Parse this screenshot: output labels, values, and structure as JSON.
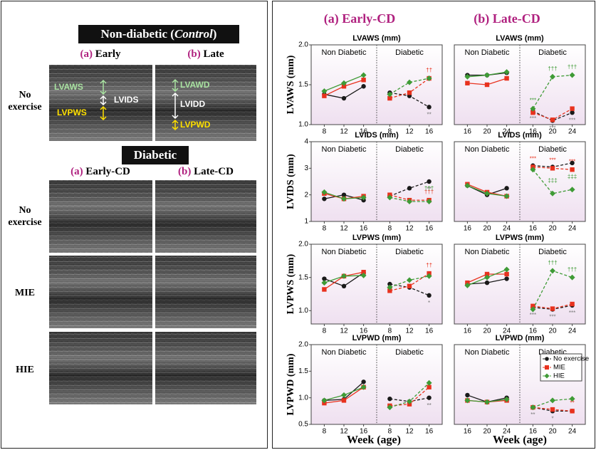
{
  "left_panel": {
    "control_title": {
      "before": "Non-diabetic (",
      "italic": "Control",
      "after": ")"
    },
    "control_columns": [
      {
        "letter": "(a)",
        "label": "Early"
      },
      {
        "letter": "(b)",
        "label": "Late"
      }
    ],
    "control_row": "No exercise",
    "early_labels": [
      "LVAWS",
      "LVIDS",
      "LVPWS"
    ],
    "late_labels": [
      "LVAWD",
      "LVIDD",
      "LVPWD"
    ],
    "diabetic_title": "Diabetic",
    "diabetic_columns": [
      {
        "letter": "(a)",
        "label": "Early-CD"
      },
      {
        "letter": "(b)",
        "label": "Late-CD"
      }
    ],
    "diabetic_rows": [
      "No exercise",
      "MIE",
      "HIE"
    ]
  },
  "figure": {
    "columns": [
      {
        "letter": "(a)",
        "label": "Early-CD"
      },
      {
        "letter": "(b)",
        "label": "Late-CD"
      }
    ],
    "x_label": "Week (age)"
  },
  "chart_data": [
    {
      "type": "line",
      "title": "LVAWS (mm)",
      "y_label": "LVAWS (mm)",
      "ylim": [
        1.0,
        2.0
      ],
      "yticks": [
        {
          "value": 1,
          "label": "1.0"
        },
        {
          "value": 1.5,
          "label": "1.5"
        },
        {
          "value": 2,
          "label": "2.0"
        }
      ],
      "panels": [
        {
          "label": "Non Diabetic",
          "categories": [
            "8",
            "12",
            "16"
          ],
          "line_style": "solid",
          "series": [
            {
              "color": "#1a1a1a",
              "marker": "circle",
              "values": [
                1.38,
                1.33,
                1.48
              ]
            },
            {
              "color": "#e8321e",
              "marker": "square",
              "values": [
                1.36,
                1.48,
                1.56
              ]
            },
            {
              "color": "#3f9b36",
              "marker": "diamond",
              "values": [
                1.42,
                1.52,
                1.62
              ]
            }
          ]
        },
        {
          "label": "Diabetic",
          "categories": [
            "8",
            "12",
            "16"
          ],
          "line_style": "dashed",
          "series": [
            {
              "color": "#1a1a1a",
              "marker": "circle",
              "values": [
                1.4,
                1.36,
                1.22
              ]
            },
            {
              "color": "#e8321e",
              "marker": "square",
              "values": [
                1.33,
                1.4,
                1.58
              ]
            },
            {
              "color": "#3f9b36",
              "marker": "diamond",
              "values": [
                1.38,
                1.53,
                1.58
              ]
            }
          ]
        }
      ],
      "annotations": [
        {
          "text": "**",
          "panel": 1,
          "index": 2,
          "series": 0
        },
        {
          "text": "††",
          "panel": 1,
          "index": 2,
          "series": 1
        }
      ]
    },
    {
      "type": "line",
      "title": "LVAWS (mm)",
      "ylim": [
        1.0,
        2.0
      ],
      "panels": [
        {
          "label": "Non Diabetic",
          "categories": [
            "16",
            "20",
            "24"
          ],
          "line_style": "solid",
          "series": [
            {
              "color": "#1a1a1a",
              "marker": "circle",
              "values": [
                1.62,
                1.62,
                1.65
              ]
            },
            {
              "color": "#e8321e",
              "marker": "square",
              "values": [
                1.52,
                1.5,
                1.58
              ]
            },
            {
              "color": "#3f9b36",
              "marker": "diamond",
              "values": [
                1.6,
                1.62,
                1.66
              ]
            }
          ]
        },
        {
          "label": "Diabetic",
          "categories": [
            "16",
            "20",
            "24"
          ],
          "line_style": "dashed",
          "series": [
            {
              "color": "#1a1a1a",
              "marker": "circle",
              "values": [
                1.17,
                1.05,
                1.15
              ]
            },
            {
              "color": "#e8321e",
              "marker": "square",
              "values": [
                1.15,
                1.06,
                1.2
              ]
            },
            {
              "color": "#3f9b36",
              "marker": "diamond",
              "values": [
                1.2,
                1.6,
                1.62
              ]
            }
          ]
        }
      ],
      "annotations": [
        {
          "text": "***",
          "panel": 1,
          "index": 0,
          "series": 2
        },
        {
          "text": "***",
          "panel": 1,
          "index": 0,
          "series": 0
        },
        {
          "text": "***",
          "panel": 1,
          "index": 1,
          "series": 0
        },
        {
          "text": "†††",
          "panel": 1,
          "index": 1,
          "series": 2
        },
        {
          "text": "†††",
          "panel": 1,
          "index": 2,
          "series": 2
        },
        {
          "text": "***",
          "panel": 1,
          "index": 2,
          "series": 0
        }
      ]
    },
    {
      "type": "line",
      "title": "LVIDS (mm)",
      "y_label": "LVIDS (mm)",
      "ylim": [
        1,
        4
      ],
      "yticks": [
        1,
        2,
        3,
        4
      ],
      "panels": [
        {
          "label": "Non Diabetic",
          "categories": [
            "8",
            "12",
            "16"
          ],
          "line_style": "solid",
          "series": [
            {
              "color": "#1a1a1a",
              "marker": "circle",
              "values": [
                1.85,
                2.0,
                1.8
              ]
            },
            {
              "color": "#e8321e",
              "marker": "square",
              "values": [
                2.05,
                1.85,
                1.95
              ]
            },
            {
              "color": "#3f9b36",
              "marker": "diamond",
              "values": [
                2.1,
                1.85,
                1.9
              ]
            }
          ]
        },
        {
          "label": "Diabetic",
          "categories": [
            "8",
            "12",
            "16"
          ],
          "line_style": "dashed",
          "series": [
            {
              "color": "#1a1a1a",
              "marker": "circle",
              "values": [
                1.95,
                2.25,
                2.5
              ]
            },
            {
              "color": "#e8321e",
              "marker": "square",
              "values": [
                2.0,
                1.8,
                1.8
              ]
            },
            {
              "color": "#3f9b36",
              "marker": "diamond",
              "values": [
                1.9,
                1.75,
                1.75
              ]
            }
          ]
        }
      ],
      "annotations": [
        {
          "text": "**",
          "panel": 1,
          "index": 2,
          "series": 0
        },
        {
          "text": "†††",
          "panel": 1,
          "index": 2,
          "series": 1
        },
        {
          "text": "†††",
          "panel": 1,
          "index": 2,
          "series": 2
        }
      ]
    },
    {
      "type": "line",
      "title": "LVIDS (mm)",
      "ylim": [
        1,
        4
      ],
      "panels": [
        {
          "label": "Non Diabetic",
          "categories": [
            "16",
            "20",
            "24"
          ],
          "line_style": "solid",
          "series": [
            {
              "color": "#1a1a1a",
              "marker": "circle",
              "values": [
                2.35,
                2.0,
                2.25
              ]
            },
            {
              "color": "#e8321e",
              "marker": "square",
              "values": [
                2.4,
                2.1,
                1.95
              ]
            },
            {
              "color": "#3f9b36",
              "marker": "diamond",
              "values": [
                2.35,
                2.05,
                1.95
              ]
            }
          ]
        },
        {
          "label": "Diabetic",
          "categories": [
            "16",
            "20",
            "24"
          ],
          "line_style": "dashed",
          "series": [
            {
              "color": "#1a1a1a",
              "marker": "circle",
              "values": [
                3.1,
                3.05,
                3.2
              ]
            },
            {
              "color": "#e8321e",
              "marker": "square",
              "values": [
                3.05,
                3.0,
                2.95
              ]
            },
            {
              "color": "#3f9b36",
              "marker": "diamond",
              "values": [
                2.95,
                2.05,
                2.2
              ]
            }
          ]
        }
      ],
      "annotations": [
        {
          "text": "***",
          "panel": 1,
          "index": 0,
          "series": 1
        },
        {
          "text": "***",
          "panel": 1,
          "index": 1,
          "series": 1
        },
        {
          "text": "***",
          "panel": 1,
          "index": 2,
          "series": 1
        },
        {
          "text": "‡‡‡",
          "panel": 1,
          "index": 1,
          "series": 2
        },
        {
          "text": "‡‡‡",
          "panel": 1,
          "index": 2,
          "series": 2
        }
      ]
    },
    {
      "type": "line",
      "title": "LVPWS (mm)",
      "y_label": "LVPWS (mm)",
      "ylim": [
        0.8,
        2.0
      ],
      "yticks": [
        {
          "value": 1,
          "label": "1.0"
        },
        {
          "value": 1.5,
          "label": "1.5"
        },
        {
          "value": 2,
          "label": "2.0"
        }
      ],
      "panels": [
        {
          "label": "Non Diabetic",
          "categories": [
            "8",
            "12",
            "16"
          ],
          "line_style": "solid",
          "series": [
            {
              "color": "#1a1a1a",
              "marker": "circle",
              "values": [
                1.48,
                1.37,
                1.57
              ]
            },
            {
              "color": "#e8321e",
              "marker": "square",
              "values": [
                1.32,
                1.52,
                1.58
              ]
            },
            {
              "color": "#3f9b36",
              "marker": "diamond",
              "values": [
                1.42,
                1.52,
                1.53
              ]
            }
          ]
        },
        {
          "label": "Diabetic",
          "categories": [
            "8",
            "12",
            "16"
          ],
          "line_style": "dashed",
          "series": [
            {
              "color": "#1a1a1a",
              "marker": "circle",
              "values": [
                1.4,
                1.35,
                1.23
              ]
            },
            {
              "color": "#e8321e",
              "marker": "square",
              "values": [
                1.3,
                1.37,
                1.56
              ]
            },
            {
              "color": "#3f9b36",
              "marker": "diamond",
              "values": [
                1.35,
                1.46,
                1.52
              ]
            }
          ]
        }
      ],
      "annotations": [
        {
          "text": "*",
          "panel": 1,
          "index": 2,
          "series": 0
        },
        {
          "text": "††",
          "panel": 1,
          "index": 2,
          "series": 1
        }
      ]
    },
    {
      "type": "line",
      "title": "LVPWS (mm)",
      "ylim": [
        0.8,
        2.0
      ],
      "panels": [
        {
          "label": "Non Diabetic",
          "categories": [
            "16",
            "20",
            "24"
          ],
          "line_style": "solid",
          "series": [
            {
              "color": "#1a1a1a",
              "marker": "circle",
              "values": [
                1.4,
                1.42,
                1.48
              ]
            },
            {
              "color": "#e8321e",
              "marker": "square",
              "values": [
                1.42,
                1.55,
                1.55
              ]
            },
            {
              "color": "#3f9b36",
              "marker": "diamond",
              "values": [
                1.38,
                1.5,
                1.62
              ]
            }
          ]
        },
        {
          "label": "Diabetic",
          "categories": [
            "16",
            "20",
            "24"
          ],
          "line_style": "dashed",
          "series": [
            {
              "color": "#1a1a1a",
              "marker": "circle",
              "values": [
                1.05,
                1.02,
                1.08
              ]
            },
            {
              "color": "#e8321e",
              "marker": "square",
              "values": [
                1.07,
                1.03,
                1.1
              ]
            },
            {
              "color": "#3f9b36",
              "marker": "diamond",
              "values": [
                1.02,
                1.6,
                1.5
              ]
            }
          ]
        }
      ],
      "annotations": [
        {
          "text": "***",
          "panel": 1,
          "index": 0,
          "series": 0
        },
        {
          "text": "***",
          "panel": 1,
          "index": 1,
          "series": 0
        },
        {
          "text": "***",
          "panel": 1,
          "index": 2,
          "series": 0
        },
        {
          "text": "†††",
          "panel": 1,
          "index": 1,
          "series": 2
        },
        {
          "text": "†††",
          "panel": 1,
          "index": 2,
          "series": 2
        }
      ]
    },
    {
      "type": "line",
      "title": "LVPWD (mm)",
      "y_label": "LVPWD (mm)",
      "ylim": [
        0.5,
        2.0
      ],
      "yticks": [
        {
          "value": 0.5,
          "label": "0.5"
        },
        {
          "value": 1,
          "label": "1.0"
        },
        {
          "value": 1.5,
          "label": "1.5"
        },
        {
          "value": 2,
          "label": "2.0"
        }
      ],
      "panels": [
        {
          "label": "Non Diabetic",
          "categories": [
            "8",
            "12",
            "16"
          ],
          "line_style": "solid",
          "series": [
            {
              "color": "#1a1a1a",
              "marker": "circle",
              "values": [
                0.95,
                0.97,
                1.3
              ]
            },
            {
              "color": "#e8321e",
              "marker": "square",
              "values": [
                0.9,
                0.95,
                1.2
              ]
            },
            {
              "color": "#3f9b36",
              "marker": "diamond",
              "values": [
                0.95,
                1.05,
                1.2
              ]
            }
          ]
        },
        {
          "label": "Diabetic",
          "categories": [
            "8",
            "12",
            "16"
          ],
          "line_style": "dashed",
          "series": [
            {
              "color": "#1a1a1a",
              "marker": "circle",
              "values": [
                0.98,
                0.93,
                1.0
              ]
            },
            {
              "color": "#e8321e",
              "marker": "square",
              "values": [
                0.85,
                0.88,
                1.2
              ]
            },
            {
              "color": "#3f9b36",
              "marker": "diamond",
              "values": [
                0.82,
                0.93,
                1.28
              ]
            }
          ]
        }
      ],
      "annotations": [
        {
          "text": "**",
          "panel": 1,
          "index": 2,
          "series": 0
        }
      ]
    },
    {
      "type": "line",
      "title": "LVPWD (mm)",
      "ylim": [
        0.5,
        2.0
      ],
      "legend": [
        "No exercise",
        "MIE",
        "HIE"
      ],
      "panels": [
        {
          "label": "Non Diabetic",
          "categories": [
            "16",
            "20",
            "24"
          ],
          "line_style": "solid",
          "series": [
            {
              "color": "#1a1a1a",
              "marker": "circle",
              "values": [
                1.05,
                0.92,
                1.0
              ]
            },
            {
              "color": "#e8321e",
              "marker": "square",
              "values": [
                0.95,
                0.92,
                0.95
              ]
            },
            {
              "color": "#3f9b36",
              "marker": "diamond",
              "values": [
                0.95,
                0.92,
                0.97
              ]
            }
          ]
        },
        {
          "label": "Diabetic",
          "categories": [
            "16",
            "20",
            "24"
          ],
          "line_style": "dashed",
          "series": [
            {
              "color": "#1a1a1a",
              "marker": "circle",
              "values": [
                0.82,
                0.75,
                0.75
              ]
            },
            {
              "color": "#e8321e",
              "marker": "square",
              "values": [
                0.82,
                0.78,
                0.75
              ]
            },
            {
              "color": "#3f9b36",
              "marker": "diamond",
              "values": [
                0.82,
                0.95,
                0.98
              ]
            }
          ]
        }
      ],
      "annotations": [
        {
          "text": "**",
          "panel": 1,
          "index": 0,
          "series": 0
        },
        {
          "text": "*",
          "panel": 1,
          "index": 1,
          "series": 0
        },
        {
          "text": "**",
          "panel": 1,
          "index": 2,
          "series": 1
        }
      ]
    }
  ]
}
